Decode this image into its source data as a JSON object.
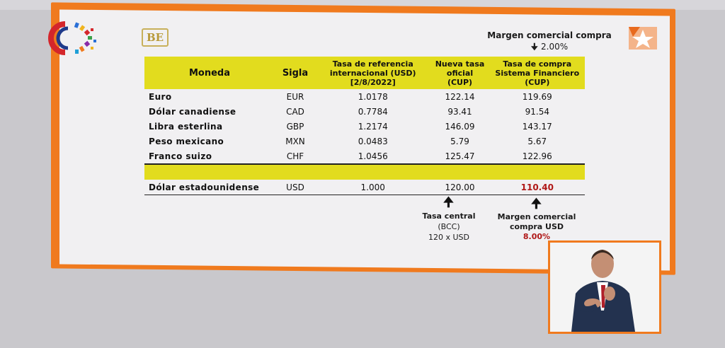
{
  "header": {
    "margin_label": "Margen comercial compra",
    "margin_value": "2.00%"
  },
  "table": {
    "columns": [
      "Moneda",
      "Sigla",
      "Tasa de referencia internacional (USD) [2/8/2022]",
      "Nueva tasa oficial (CUP)",
      "Tasa de compra Sistema Financiero (CUP)"
    ],
    "rows": [
      {
        "moneda": "Euro",
        "sigla": "EUR",
        "ref": "1.0178",
        "oficial": "122.14",
        "compra": "119.69"
      },
      {
        "moneda": "Dólar canadiense",
        "sigla": "CAD",
        "ref": "0.7784",
        "oficial": "93.41",
        "compra": "91.54"
      },
      {
        "moneda": "Libra esterlina",
        "sigla": "GBP",
        "ref": "1.2174",
        "oficial": "146.09",
        "compra": "143.17"
      },
      {
        "moneda": "Peso mexicano",
        "sigla": "MXN",
        "ref": "0.0483",
        "oficial": "5.79",
        "compra": "5.67"
      },
      {
        "moneda": "Franco suizo",
        "sigla": "CHF",
        "ref": "1.0456",
        "oficial": "125.47",
        "compra": "122.96"
      }
    ],
    "usd_row": {
      "moneda": "Dólar estadounidense",
      "sigla": "USD",
      "ref": "1.000",
      "oficial": "120.00",
      "compra": "110.40"
    }
  },
  "notes": {
    "central_title": "Tasa central",
    "central_sub": "(BCC)",
    "central_calc": "120 x USD",
    "margin_usd_title": "Margen comercial compra USD",
    "margin_usd_value": "8.00%"
  },
  "logos": {
    "bank_mark": "BE"
  },
  "colors": {
    "frame_orange": "#f07a1e",
    "header_yellow": "#e2dc1e",
    "highlight_red": "#b01818"
  }
}
